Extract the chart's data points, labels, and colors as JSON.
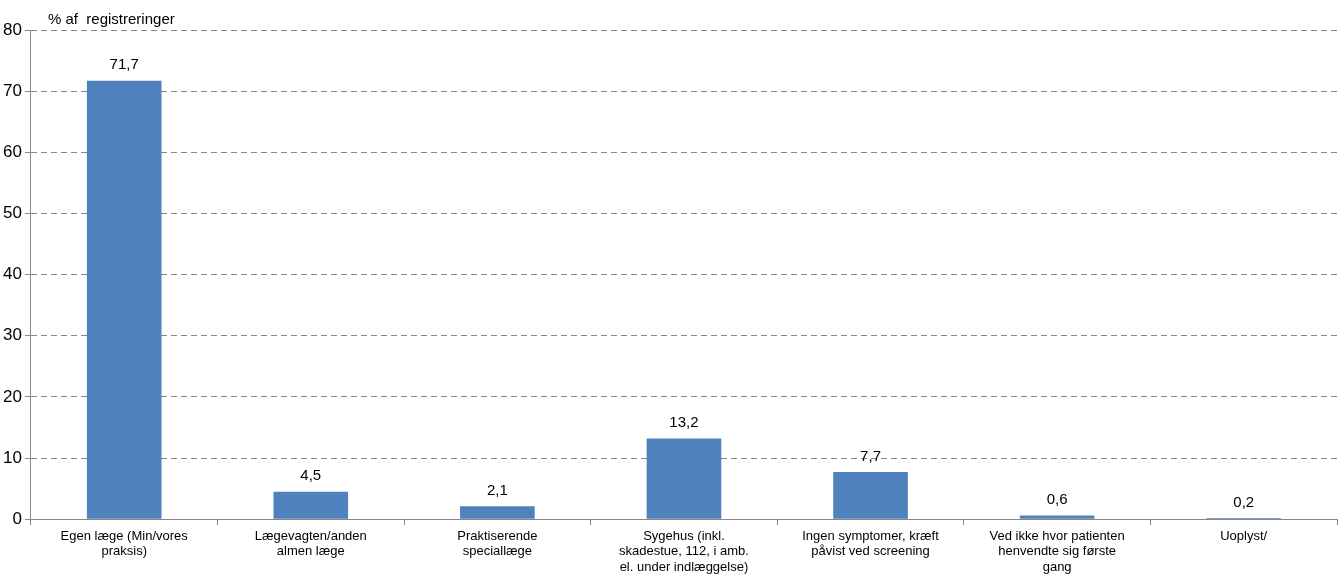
{
  "chart_data": {
    "type": "bar",
    "ylabel": "% af  registreringer",
    "categories": [
      "Egen læge (Min/vores praksis)",
      "Lægevagten/anden almen læge",
      "Praktiserende speciallæge",
      "Sygehus (inkl. skadestue, 112, i amb. el. under indlæggelse)",
      "Ingen symptomer, kræft påvist ved screening",
      "Ved ikke hvor patienten henvendte sig første gang",
      "Uoplyst/"
    ],
    "values": [
      71.7,
      4.5,
      2.1,
      13.2,
      7.7,
      0.6,
      0.2
    ],
    "value_labels": [
      "71,7",
      "4,5",
      "2,1",
      "13,2",
      "7,7",
      "0,6",
      "0,2"
    ],
    "color": "#4f81bd",
    "ylim": [
      0,
      80
    ],
    "yticks": [
      0,
      10,
      20,
      30,
      40,
      50,
      60,
      70,
      80
    ],
    "grid": "y",
    "line_style": "dashed",
    "legend": false
  }
}
